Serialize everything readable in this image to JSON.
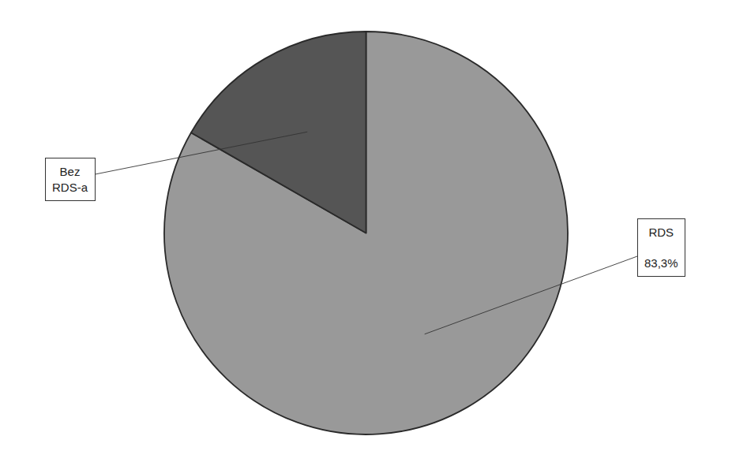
{
  "chart_data": {
    "type": "pie",
    "categories": [
      "RDS",
      "Bez\nRDS-a"
    ],
    "values": [
      83.3,
      16.7
    ],
    "value_labels": [
      "83,3%",
      null
    ],
    "colors": [
      "#999999",
      "#555555"
    ],
    "legend": false
  }
}
